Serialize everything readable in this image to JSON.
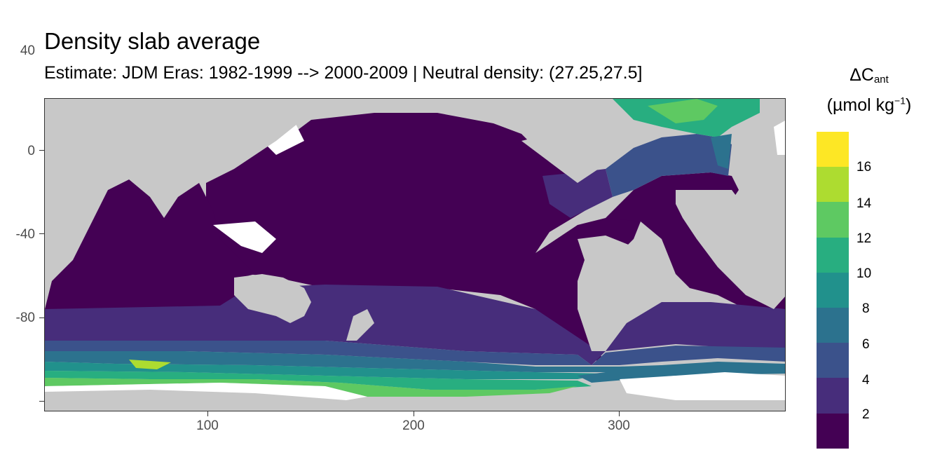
{
  "title": "Density slab average",
  "subtitle": "Estimate: JDM Eras: 1982-1999 --> 2000-2009 | Neutral density: (27.25,27.5]",
  "legend": {
    "title_main": "ΔC",
    "title_sub": "ant",
    "units_prefix": "(µmol kg",
    "units_sup": "−1",
    "units_suffix": ")",
    "labels": [
      "16",
      "14",
      "12",
      "10",
      "8",
      "6",
      "4",
      "2"
    ],
    "colors": [
      "#fde725",
      "#addc30",
      "#5ec962",
      "#28ae80",
      "#21918c",
      "#2c728e",
      "#3b528b",
      "#472d7b",
      "#440154"
    ]
  },
  "axes": {
    "x_ticks": [
      "100",
      "200",
      "300"
    ],
    "y_ticks": [
      "40",
      "0",
      "-40",
      "-80"
    ]
  },
  "colors": {
    "land": "#c8c8c8",
    "missing": "#ffffff"
  }
}
